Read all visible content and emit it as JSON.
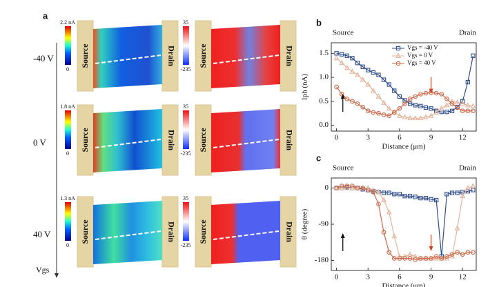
{
  "panel_a": {
    "label": "a",
    "source": "Source",
    "drain": "Drain",
    "axis_label": "Vgs",
    "rows": [
      {
        "label": "-40 V",
        "current_bar": {
          "max": "2.2 nA",
          "min": "0"
        },
        "phase_bar": {
          "max": "35",
          "min": "-235"
        }
      },
      {
        "label": "0 V",
        "current_bar": {
          "max": "1.8 nA",
          "min": "0"
        },
        "phase_bar": {
          "max": "35",
          "min": "-235"
        }
      },
      {
        "label": "40 V",
        "current_bar": {
          "max": "1.3 nA",
          "min": "0"
        },
        "phase_bar": {
          "max": "35",
          "min": "-235"
        }
      }
    ]
  },
  "chart_data": [
    {
      "type": "line",
      "panel": "b",
      "annotations": [
        "Source",
        "Drain"
      ],
      "xlabel": "Distance (μm)",
      "ylabel": "Iph (nA)",
      "legend": "upper right",
      "xlim": [
        -0.5,
        13.3
      ],
      "ylim": [
        -0.12,
        1.72
      ],
      "xticks": [
        0,
        3,
        6,
        9,
        12
      ],
      "yticks": [
        {
          "value": 0,
          "label": "0.0"
        },
        0.5,
        {
          "value": 1,
          "label": "1.0"
        },
        1.5
      ],
      "x": [
        0,
        0.5,
        1,
        1.5,
        2,
        2.5,
        3,
        3.5,
        4,
        4.5,
        5,
        5.5,
        6,
        6.5,
        7,
        7.5,
        8,
        8.5,
        9,
        9.5,
        10,
        10.5,
        11,
        11.5,
        12,
        12.5,
        13
      ],
      "series": [
        {
          "name": "Vgs = -40 V",
          "color": "#2d4b8c",
          "marker": "square",
          "values": [
            1.5,
            1.48,
            1.45,
            1.4,
            1.3,
            1.22,
            1.15,
            1.1,
            1.05,
            0.95,
            0.85,
            0.72,
            0.6,
            0.52,
            0.45,
            0.42,
            0.4,
            0.37,
            0.35,
            0.3,
            0.28,
            0.28,
            0.3,
            0.38,
            0.5,
            0.9,
            1.45
          ]
        },
        {
          "name": "Vgs = 0 V",
          "color": "#e3b49c",
          "marker": "triangle",
          "values": [
            1.4,
            1.3,
            1.2,
            1.12,
            1.05,
            0.95,
            0.85,
            0.72,
            0.6,
            0.47,
            0.35,
            0.27,
            0.2,
            0.17,
            0.15,
            0.15,
            0.15,
            0.17,
            0.2,
            0.27,
            0.35,
            0.42,
            0.5,
            0.48,
            0.45,
            0.42,
            0.4
          ]
        },
        {
          "name": "Vgs = 40 V",
          "color": "#cf6848",
          "marker": "circle",
          "values": [
            0.8,
            0.65,
            0.55,
            0.5,
            0.45,
            0.38,
            0.3,
            0.27,
            0.25,
            0.22,
            0.2,
            0.27,
            0.35,
            0.45,
            0.55,
            0.6,
            0.65,
            0.67,
            0.68,
            0.67,
            0.65,
            0.55,
            0.45,
            0.37,
            0.3,
            0.3,
            0.3
          ]
        }
      ]
    },
    {
      "type": "line",
      "panel": "c",
      "annotations": [
        "Source",
        "Drain"
      ],
      "xlabel": "Distance (μm)",
      "ylabel": "θ (degree)",
      "xlim": [
        -0.5,
        13.3
      ],
      "ylim": [
        -205,
        25
      ],
      "xticks": [
        0,
        3,
        6,
        9,
        12
      ],
      "yticks": [
        0,
        -90,
        -180
      ],
      "x": [
        0,
        0.5,
        1,
        1.5,
        2,
        2.5,
        3,
        3.5,
        4,
        4.5,
        5,
        5.5,
        6,
        6.5,
        7,
        7.5,
        8,
        8.5,
        9,
        9.5,
        10,
        10.5,
        11,
        11.5,
        12,
        12.5,
        13
      ],
      "series": [
        {
          "color": "#2d4b8c",
          "marker": "square",
          "values": [
            0,
            0,
            2,
            0,
            0,
            -3,
            -5,
            -8,
            -10,
            -12,
            -12,
            -15,
            -15,
            -20,
            -20,
            -22,
            -25,
            -25,
            -28,
            -30,
            -170,
            -15,
            -12,
            -12,
            -10,
            -8,
            -5
          ]
        },
        {
          "color": "#e3b49c",
          "marker": "triangle",
          "values": [
            0,
            0,
            0,
            0,
            0,
            0,
            0,
            -5,
            -10,
            -30,
            -60,
            -120,
            -170,
            -170,
            -165,
            -170,
            -175,
            -175,
            -175,
            -175,
            -175,
            -175,
            -170,
            -100,
            -20,
            0,
            5
          ]
        },
        {
          "color": "#cf6848",
          "marker": "circle",
          "values": [
            0,
            5,
            5,
            5,
            0,
            0,
            -5,
            -10,
            -40,
            -110,
            -160,
            -175,
            -175,
            -175,
            -175,
            -178,
            -175,
            -175,
            -175,
            -170,
            -175,
            -170,
            -165,
            -160,
            -165,
            -160,
            -160
          ]
        }
      ]
    }
  ]
}
